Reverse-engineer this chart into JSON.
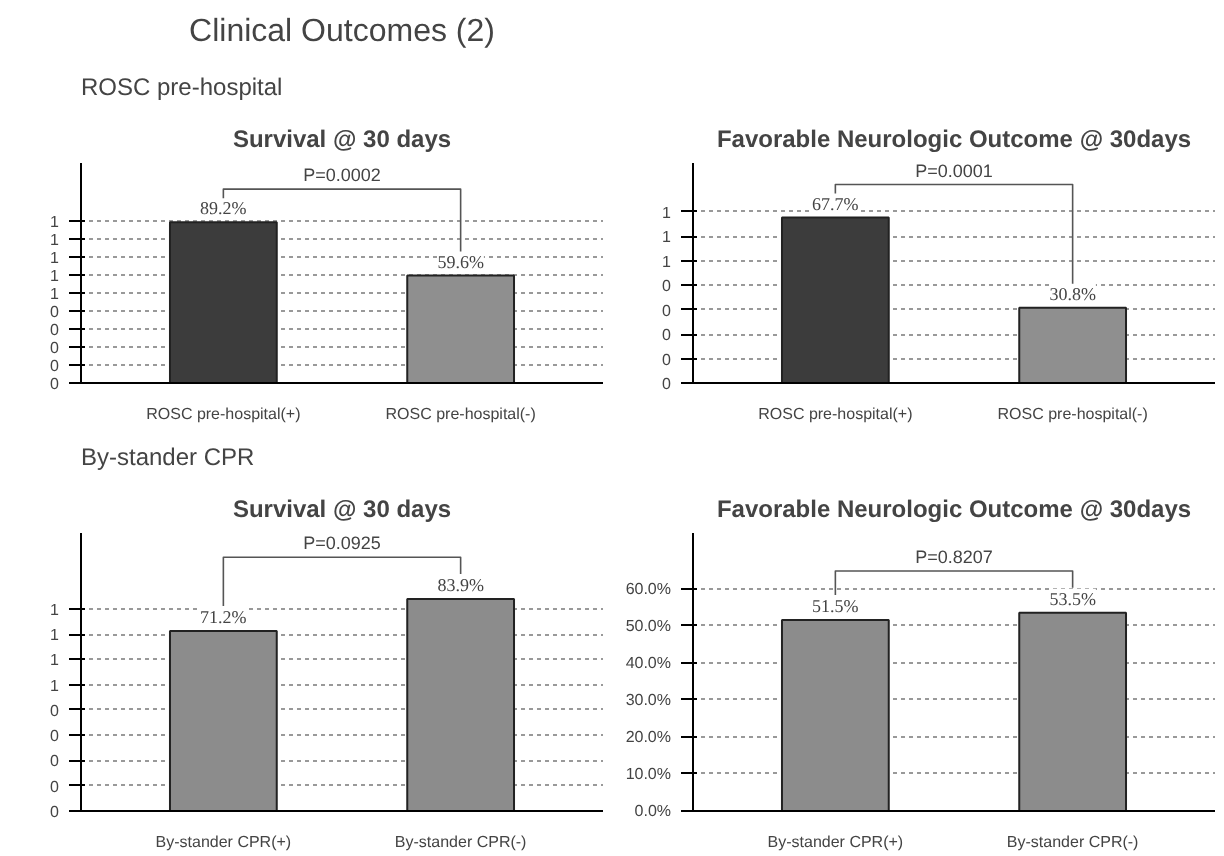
{
  "chart_data": [
    {
      "type": "bar",
      "title": "Survival @ 30 days",
      "annotations": [
        "Clinical Outcomes (2)",
        "ROSC pre-hospital",
        "P=0.0002"
      ],
      "categories": [
        "ROSC pre-hospital(+)",
        "ROSC pre-hospital(-)"
      ],
      "values": [
        0.892,
        0.596
      ],
      "colors": [
        "#3c3c3c",
        "#8f8f8f"
      ],
      "value_labels": [
        "89.2%",
        "59.6%"
      ],
      "ylim": [
        0,
        1.22
      ],
      "yticks": [
        {
          "value": 0,
          "label": "0"
        },
        {
          "value": 0.1,
          "label": "0"
        },
        {
          "value": 0.2,
          "label": "0"
        },
        {
          "value": 0.3,
          "label": "0"
        },
        {
          "value": 0.4,
          "label": "0"
        },
        {
          "value": 0.5,
          "label": "1"
        },
        {
          "value": 0.6,
          "label": "1"
        },
        {
          "value": 0.7,
          "label": "1"
        },
        {
          "value": 0.8,
          "label": "1"
        },
        {
          "value": 0.9,
          "label": "1"
        }
      ],
      "grid": "y"
    },
    {
      "type": "bar",
      "title": "Favorable Neurologic Outcome @ 30days",
      "annotations": [
        "P=0.0001"
      ],
      "categories": [
        "ROSC pre-hospital(+)",
        "ROSC pre-hospital(-)"
      ],
      "values": [
        0.677,
        0.308
      ],
      "colors": [
        "#3c3c3c",
        "#8f8f8f"
      ],
      "value_labels": [
        "67.7%",
        "30.8%"
      ],
      "ylim": [
        0,
        0.9
      ],
      "yticks": [
        {
          "value": 0,
          "label": "0"
        },
        {
          "value": 0.1,
          "label": "0"
        },
        {
          "value": 0.2,
          "label": "0"
        },
        {
          "value": 0.3,
          "label": "0"
        },
        {
          "value": 0.4,
          "label": "0"
        },
        {
          "value": 0.5,
          "label": "1"
        },
        {
          "value": 0.6,
          "label": "1"
        },
        {
          "value": 0.7,
          "label": "1"
        }
      ],
      "grid": "y"
    },
    {
      "type": "bar",
      "title": "Survival @ 30 days",
      "annotations": [
        "By-stander CPR",
        "P=0.0925"
      ],
      "categories": [
        "By-stander CPR(+)",
        "By-stander CPR(-)"
      ],
      "values": [
        0.712,
        0.839
      ],
      "colors": [
        "#8c8c8c",
        "#8c8c8c"
      ],
      "value_labels": [
        "71.2%",
        "83.9%"
      ],
      "ylim": [
        0,
        1.1
      ],
      "yticks": [
        {
          "value": 0,
          "label": "0"
        },
        {
          "value": 0.1,
          "label": "0"
        },
        {
          "value": 0.2,
          "label": "0"
        },
        {
          "value": 0.3,
          "label": "0"
        },
        {
          "value": 0.4,
          "label": "0"
        },
        {
          "value": 0.5,
          "label": "1"
        },
        {
          "value": 0.6,
          "label": "1"
        },
        {
          "value": 0.7,
          "label": "1"
        },
        {
          "value": 0.8,
          "label": "1"
        }
      ],
      "grid": "y"
    },
    {
      "type": "bar",
      "title": "Favorable Neurologic Outcome @ 30days",
      "annotations": [
        "P=0.8207"
      ],
      "categories": [
        "By-stander CPR(+)",
        "By-stander CPR(-)"
      ],
      "values": [
        51.5,
        53.5
      ],
      "colors": [
        "#8c8c8c",
        "#8c8c8c"
      ],
      "value_labels": [
        "51.5%",
        "53.5%"
      ],
      "ylim": [
        0,
        75
      ],
      "yticks": [
        {
          "value": 0,
          "label": "0.0%"
        },
        {
          "value": 10,
          "label": "10.0%"
        },
        {
          "value": 20,
          "label": "20.0%"
        },
        {
          "value": 30,
          "label": "30.0%"
        },
        {
          "value": 40,
          "label": "40.0%"
        },
        {
          "value": 50,
          "label": "50.0%"
        },
        {
          "value": 60,
          "label": "60.0%"
        }
      ],
      "grid": "y"
    }
  ]
}
